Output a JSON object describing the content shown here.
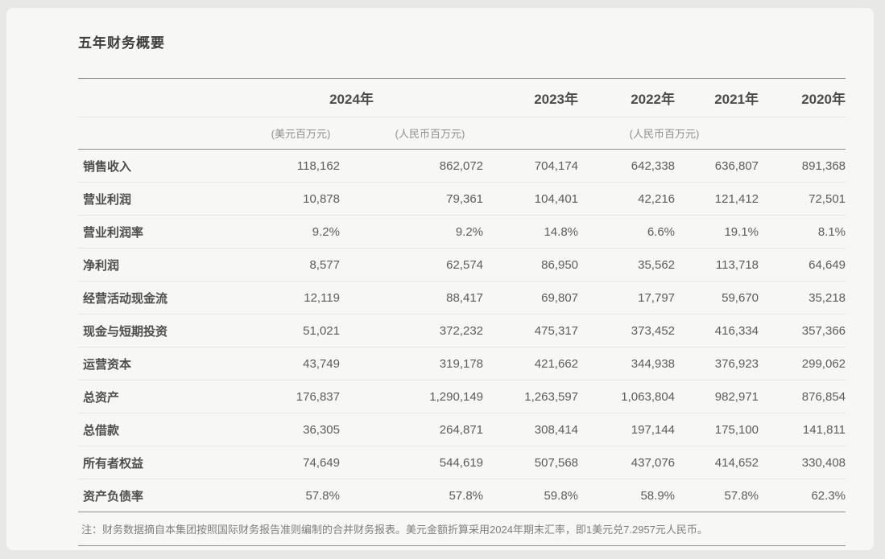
{
  "page": {
    "title": "五年财务概要",
    "note": "注：财务数据摘自本集团按照国际财务报告准则编制的合并财务报表。美元金额折算采用2024年期末汇率，即1美元兑7.2957元人民币。"
  },
  "table": {
    "year_headers": [
      "2024年",
      "2023年",
      "2022年",
      "2021年",
      "2020年"
    ],
    "unit_headers": [
      "(美元百万元)",
      "(人民币百万元)",
      "(人民币百万元)"
    ],
    "rows": [
      {
        "label": "销售收入",
        "values": [
          "118,162",
          "862,072",
          "704,174",
          "642,338",
          "636,807",
          "891,368"
        ]
      },
      {
        "label": "营业利润",
        "values": [
          "10,878",
          "79,361",
          "104,401",
          "42,216",
          "121,412",
          "72,501"
        ]
      },
      {
        "label": "营业利润率",
        "values": [
          "9.2%",
          "9.2%",
          "14.8%",
          "6.6%",
          "19.1%",
          "8.1%"
        ]
      },
      {
        "label": "净利润",
        "values": [
          "8,577",
          "62,574",
          "86,950",
          "35,562",
          "113,718",
          "64,649"
        ]
      },
      {
        "label": "经营活动现金流",
        "values": [
          "12,119",
          "88,417",
          "69,807",
          "17,797",
          "59,670",
          "35,218"
        ]
      },
      {
        "label": "现金与短期投资",
        "values": [
          "51,021",
          "372,232",
          "475,317",
          "373,452",
          "416,334",
          "357,366"
        ]
      },
      {
        "label": "运营资本",
        "values": [
          "43,749",
          "319,178",
          "421,662",
          "344,938",
          "376,923",
          "299,062"
        ]
      },
      {
        "label": "总资产",
        "values": [
          "176,837",
          "1,290,149",
          "1,263,597",
          "1,063,804",
          "982,971",
          "876,854"
        ]
      },
      {
        "label": "总借款",
        "values": [
          "36,305",
          "264,871",
          "308,414",
          "197,144",
          "175,100",
          "141,811"
        ]
      },
      {
        "label": "所有者权益",
        "values": [
          "74,649",
          "544,619",
          "507,568",
          "437,076",
          "414,652",
          "330,408"
        ]
      },
      {
        "label": "资产负债率",
        "values": [
          "57.8%",
          "57.8%",
          "59.8%",
          "58.9%",
          "57.8%",
          "62.3%"
        ]
      }
    ]
  }
}
